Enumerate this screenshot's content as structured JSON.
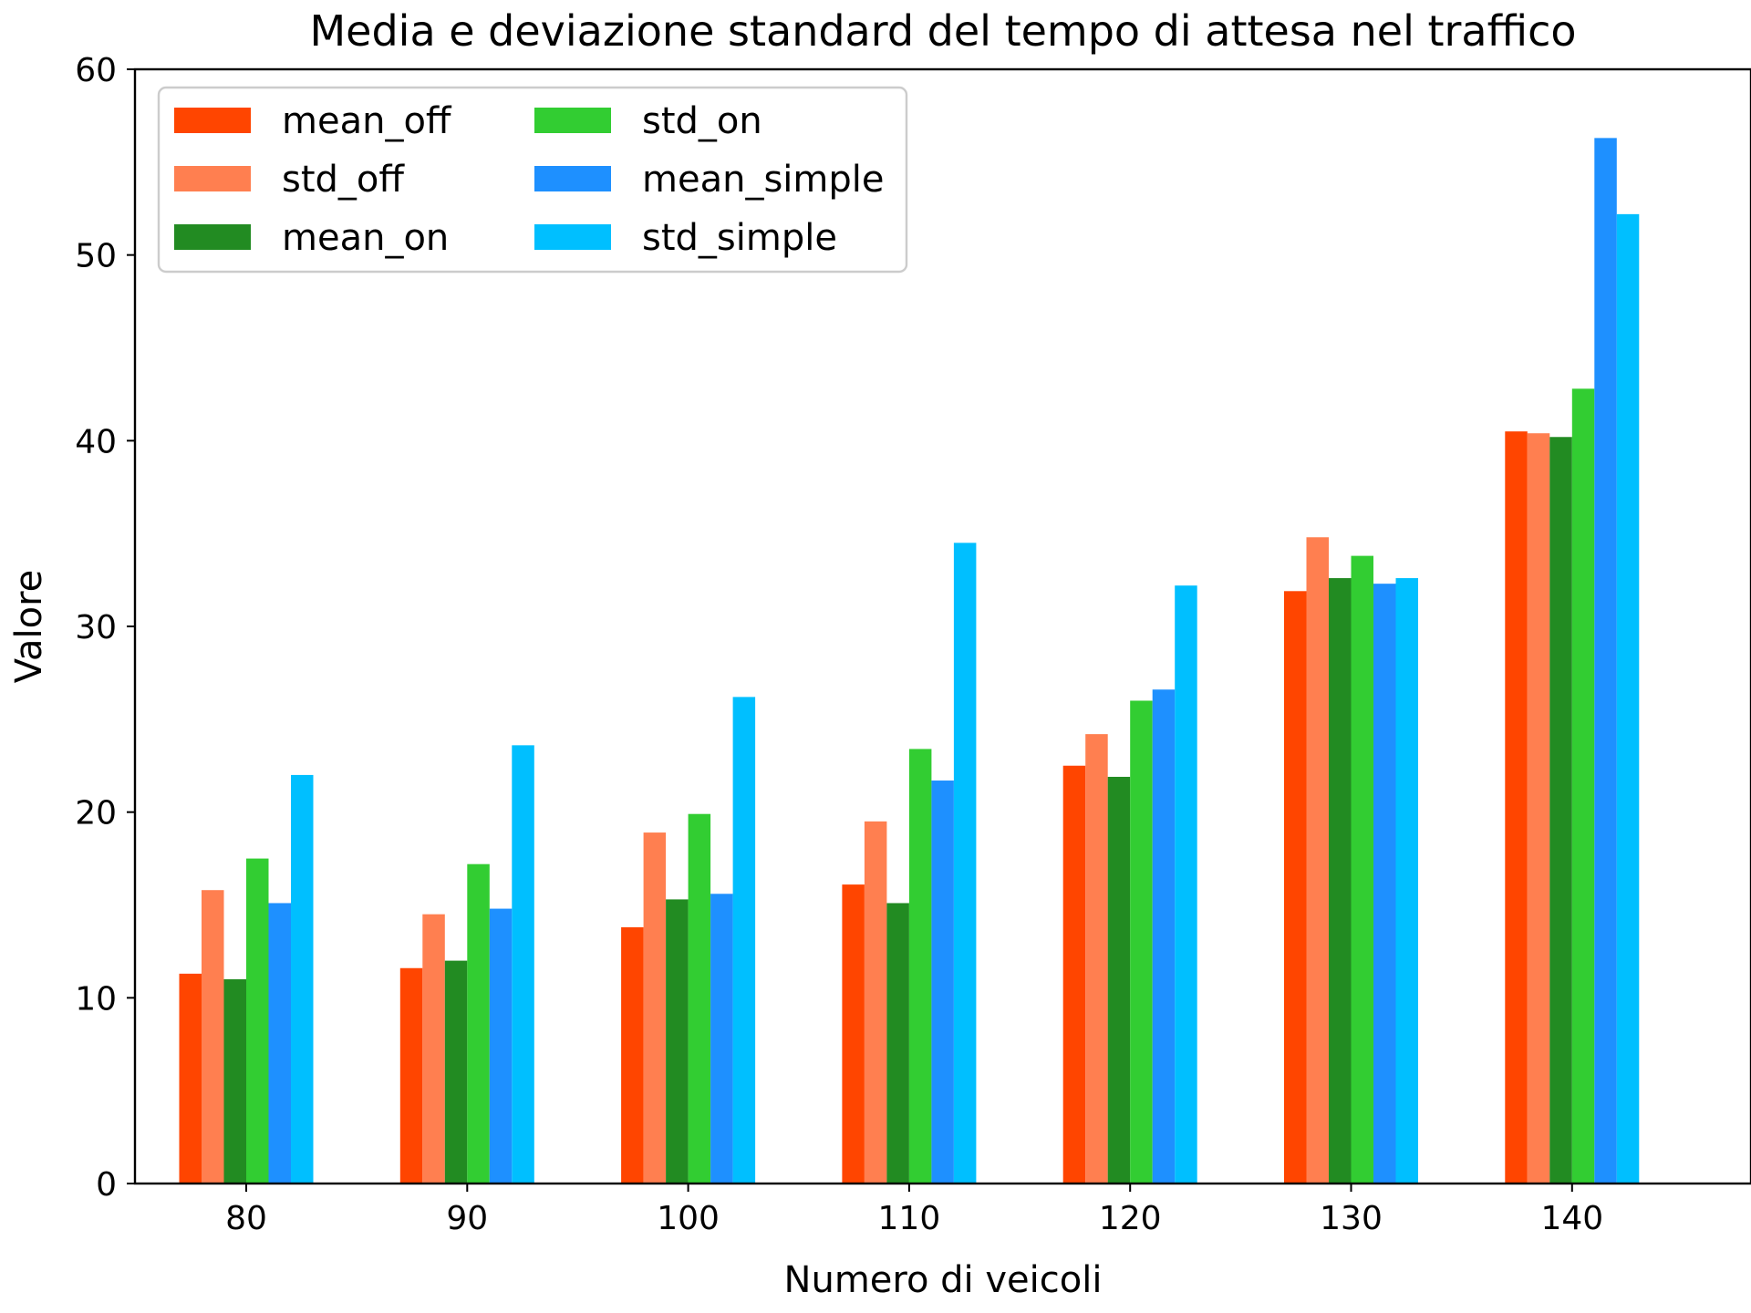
{
  "chart_data": {
    "type": "bar",
    "title": "Media e deviazione standard del tempo di attesa nel traffico",
    "xlabel": "Numero di veicoli",
    "ylabel": "Valore",
    "categories": [
      "80",
      "90",
      "100",
      "110",
      "120",
      "130",
      "140"
    ],
    "ylim": [
      0,
      60
    ],
    "yticks": [
      0,
      10,
      20,
      30,
      40,
      50,
      60
    ],
    "grid": false,
    "legend_position": "top-left",
    "legend_columns": 2,
    "series": [
      {
        "name": "mean_off",
        "color": "#ff4500",
        "values": [
          11.3,
          11.6,
          13.8,
          16.1,
          22.5,
          31.9,
          40.5
        ]
      },
      {
        "name": "std_off",
        "color": "#ff7f50",
        "values": [
          15.8,
          14.5,
          18.9,
          19.5,
          24.2,
          34.8,
          40.4
        ]
      },
      {
        "name": "mean_on",
        "color": "#228b22",
        "values": [
          11.0,
          12.0,
          15.3,
          15.1,
          21.9,
          32.6,
          40.2
        ]
      },
      {
        "name": "std_on",
        "color": "#32cd32",
        "values": [
          17.5,
          17.2,
          19.9,
          23.4,
          26.0,
          33.8,
          42.8
        ]
      },
      {
        "name": "mean_simple",
        "color": "#1e90ff",
        "values": [
          15.1,
          14.8,
          15.6,
          21.7,
          26.6,
          32.3,
          56.3
        ]
      },
      {
        "name": "std_simple",
        "color": "#00bfff",
        "values": [
          22.0,
          23.6,
          26.2,
          34.5,
          32.2,
          32.6,
          52.2
        ]
      }
    ]
  }
}
